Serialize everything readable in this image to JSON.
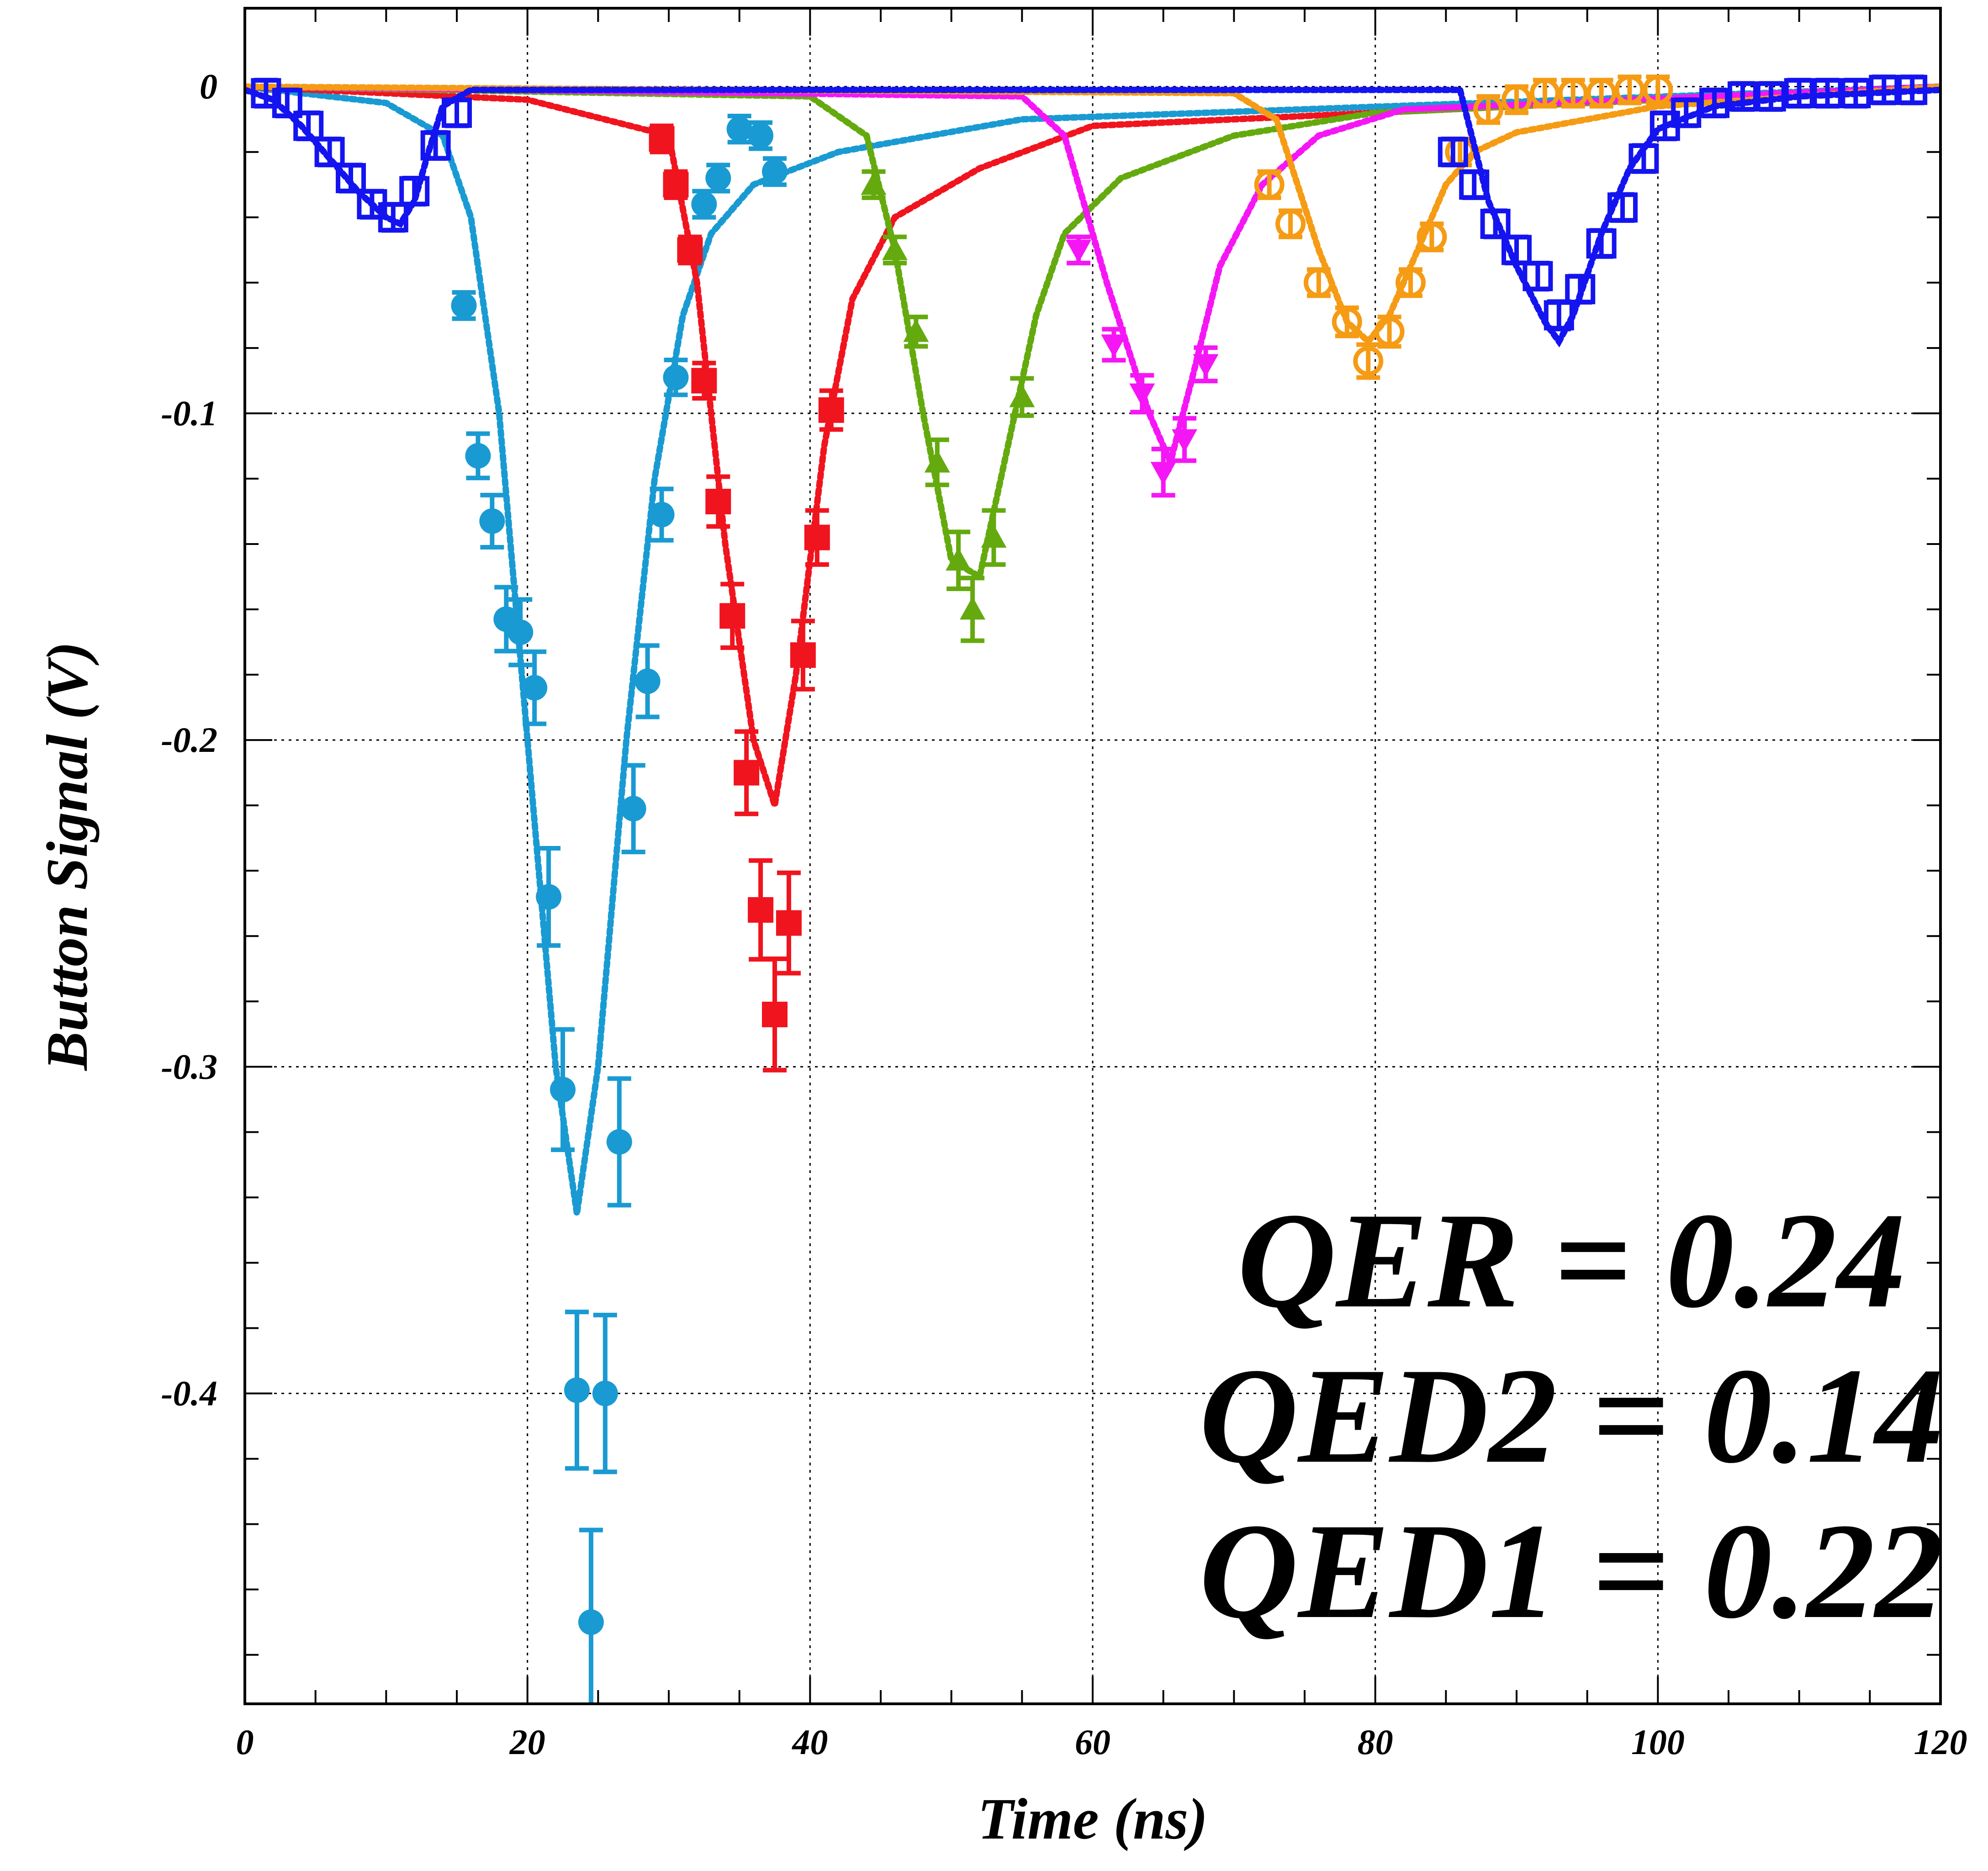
{
  "chart_data": {
    "type": "scatter",
    "title": "",
    "xlabel": "Time (ns)",
    "ylabel": "Button Signal (V)",
    "xlim": [
      0,
      120
    ],
    "ylim": [
      -0.495,
      0.024
    ],
    "xticks": [
      0,
      20,
      40,
      60,
      80,
      100,
      120
    ],
    "xtick_labels": [
      "0",
      "20",
      "40",
      "60",
      "80",
      "100",
      "120"
    ],
    "yticks": [
      0,
      -0.1,
      -0.2,
      -0.3,
      -0.4
    ],
    "ytick_labels": [
      "0",
      "-0.1",
      "-0.2",
      "-0.3",
      "-0.4"
    ],
    "grid": true,
    "annotations": [
      "QER = 0.24",
      "QED2 = 0.14",
      "QED1 = 0.22"
    ],
    "series": [
      {
        "color": "#1a9ad2",
        "marker": "filled-circle",
        "x": [
          15.5,
          16.5,
          17.5,
          18.5,
          19.5,
          20.5,
          21.5,
          22.5,
          23.5,
          24.5,
          25.5,
          26.5,
          27.5,
          28.5,
          29.5,
          30.5,
          32.5,
          33.5,
          35.0,
          36.5,
          37.5
        ],
        "y": [
          -0.067,
          -0.113,
          -0.133,
          -0.163,
          -0.167,
          -0.184,
          -0.248,
          -0.307,
          -0.399,
          -0.47,
          -0.4,
          -0.323,
          -0.221,
          -0.182,
          -0.131,
          -0.089,
          -0.036,
          -0.028,
          -0.013,
          -0.015,
          -0.026
        ],
        "fit": {
          "x": [
            0,
            10,
            14,
            16,
            18,
            20,
            22,
            23.5,
            25,
            27,
            29,
            31,
            33,
            36,
            42,
            55,
            120
          ],
          "y": [
            0,
            -0.005,
            -0.015,
            -0.04,
            -0.1,
            -0.2,
            -0.3,
            -0.345,
            -0.3,
            -0.2,
            -0.12,
            -0.07,
            -0.045,
            -0.03,
            -0.02,
            -0.01,
            0
          ]
        }
      },
      {
        "color": "#f0141e",
        "marker": "filled-square",
        "x": [
          29.5,
          30.5,
          31.5,
          32.5,
          33.5,
          34.5,
          35.5,
          36.5,
          37.5,
          38.5,
          39.5,
          40.5,
          41.5
        ],
        "y": [
          -0.016,
          -0.03,
          -0.05,
          -0.09,
          -0.127,
          -0.162,
          -0.21,
          -0.252,
          -0.284,
          -0.256,
          -0.174,
          -0.138,
          -0.099
        ],
        "fit": {
          "x": [
            0,
            20,
            30,
            32,
            34,
            36,
            37.5,
            39,
            41,
            43,
            46,
            52,
            60,
            120
          ],
          "y": [
            0,
            -0.004,
            -0.015,
            -0.06,
            -0.14,
            -0.2,
            -0.22,
            -0.18,
            -0.11,
            -0.065,
            -0.04,
            -0.025,
            -0.012,
            0
          ]
        }
      },
      {
        "color": "#64aa0f",
        "marker": "filled-triangle-up",
        "x": [
          44.5,
          46.0,
          47.5,
          49.0,
          50.5,
          51.5,
          53.0,
          55.0
        ],
        "y": [
          -0.03,
          -0.05,
          -0.075,
          -0.115,
          -0.145,
          -0.16,
          -0.138,
          -0.095
        ],
        "fit": {
          "x": [
            0,
            40,
            44,
            46,
            48,
            50,
            52,
            54,
            56,
            58,
            62,
            70,
            80,
            120
          ],
          "y": [
            0,
            -0.003,
            -0.015,
            -0.05,
            -0.1,
            -0.145,
            -0.15,
            -0.11,
            -0.07,
            -0.045,
            -0.028,
            -0.015,
            -0.008,
            0
          ]
        }
      },
      {
        "color": "#f516f5",
        "marker": "filled-triangle-down",
        "x": [
          59.0,
          61.5,
          63.5,
          65.0,
          66.5,
          68.0
        ],
        "y": [
          -0.05,
          -0.079,
          -0.094,
          -0.118,
          -0.108,
          -0.085
        ],
        "fit": {
          "x": [
            0,
            55,
            58,
            61,
            64,
            65.5,
            67,
            69,
            72,
            76,
            82,
            120
          ],
          "y": [
            0,
            -0.003,
            -0.015,
            -0.06,
            -0.1,
            -0.115,
            -0.09,
            -0.055,
            -0.03,
            -0.015,
            -0.007,
            0
          ]
        }
      },
      {
        "color": "#f59b14",
        "marker": "open-circle",
        "x": [
          72.5,
          74.0,
          76.0,
          78.0,
          79.5,
          81.0,
          82.5,
          84.0,
          86.0,
          88.0,
          90.0,
          92.0,
          94.0,
          96.0,
          98.0,
          100.0
        ],
        "y": [
          -0.03,
          -0.042,
          -0.06,
          -0.072,
          -0.084,
          -0.075,
          -0.06,
          -0.046,
          -0.02,
          -0.007,
          -0.004,
          -0.002,
          -0.002,
          -0.002,
          -0.001,
          -0.001
        ],
        "fit": {
          "x": [
            0,
            70,
            73,
            76,
            78,
            79.5,
            81,
            83,
            85,
            87,
            90,
            95,
            100,
            120
          ],
          "y": [
            0,
            -0.002,
            -0.01,
            -0.05,
            -0.072,
            -0.078,
            -0.07,
            -0.05,
            -0.03,
            -0.02,
            -0.014,
            -0.01,
            -0.006,
            0
          ]
        }
      },
      {
        "color": "#1414f0",
        "marker": "open-square",
        "x": [
          1.5,
          3.0,
          4.5,
          6.0,
          7.5,
          9.0,
          10.5,
          12.0,
          13.5,
          15.0,
          85.5,
          87.0,
          88.5,
          90.0,
          91.5,
          93.0,
          94.5,
          96.0,
          97.5,
          99.0,
          100.5,
          102.0,
          104.0,
          106.0,
          108.0,
          110.0,
          112.0,
          114.0,
          116.0,
          118.0
        ],
        "y": [
          -0.002,
          -0.005,
          -0.012,
          -0.02,
          -0.028,
          -0.036,
          -0.04,
          -0.032,
          -0.018,
          -0.008,
          -0.02,
          -0.03,
          -0.042,
          -0.05,
          -0.058,
          -0.07,
          -0.062,
          -0.048,
          -0.037,
          -0.022,
          -0.012,
          -0.008,
          -0.005,
          -0.003,
          -0.003,
          -0.002,
          -0.002,
          -0.002,
          -0.001,
          -0.001
        ],
        "fit": {
          "x": [
            0,
            2,
            4,
            6,
            8,
            10,
            11,
            12,
            13,
            14,
            16,
            86,
            88,
            90,
            92,
            93,
            94,
            96,
            98,
            100,
            104,
            110,
            120
          ],
          "y": [
            -0.001,
            -0.004,
            -0.012,
            -0.022,
            -0.032,
            -0.04,
            -0.042,
            -0.035,
            -0.02,
            -0.006,
            -0.001,
            -0.001,
            -0.035,
            -0.055,
            -0.072,
            -0.078,
            -0.07,
            -0.045,
            -0.025,
            -0.013,
            -0.006,
            -0.003,
            -0.001
          ]
        }
      }
    ]
  }
}
